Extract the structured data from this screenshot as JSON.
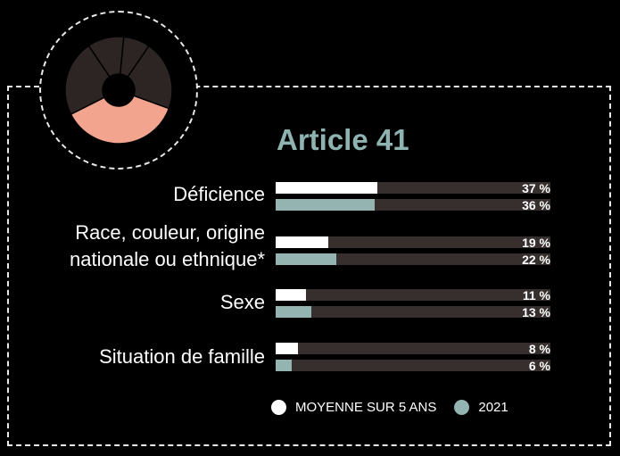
{
  "colors": {
    "background": "#000000",
    "avg": "#ffffff",
    "year2021": "#93b4b0",
    "track": "#362f2e",
    "title": "#8fb3b1",
    "donut_dark": "#2c2523",
    "donut_accent": "#f2a48e"
  },
  "donut": {
    "segments": [
      {
        "value": 37,
        "highlight": true
      },
      {
        "value": 23,
        "highlight": false
      },
      {
        "value": 11,
        "highlight": false
      },
      {
        "value": 8,
        "highlight": false
      },
      {
        "value": 21,
        "highlight": false
      }
    ]
  },
  "chart_data": {
    "type": "bar",
    "title": "Article 41",
    "categories": [
      [
        "Déficience"
      ],
      [
        "Race, couleur, origine",
        "nationale ou ethnique*"
      ],
      [
        "Sexe"
      ],
      [
        "Situation de famille"
      ]
    ],
    "series": [
      {
        "name": "MOYENNE SUR 5 ANS",
        "values": [
          37,
          19,
          11,
          8
        ],
        "labels": [
          "37 %",
          "19 %",
          "11 %",
          "8 %"
        ]
      },
      {
        "name": "2021",
        "values": [
          36,
          22,
          13,
          6
        ],
        "labels": [
          "36 %",
          "22 %",
          "13 %",
          "6 %"
        ]
      }
    ],
    "xlim": [
      0,
      100
    ],
    "legend": "bottom"
  }
}
